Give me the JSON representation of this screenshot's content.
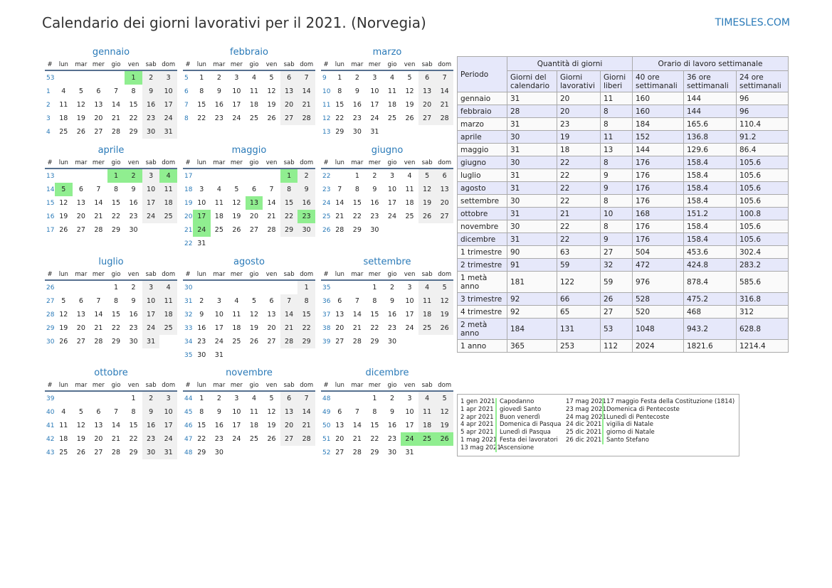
{
  "title": "Calendario dei giorni lavorativi per il 2021. (Norvegia)",
  "brand": "TIMESLES.COM",
  "calendar": {
    "year": 2021,
    "headers": [
      "#",
      "lun",
      "mar",
      "mer",
      "gio",
      "ven",
      "sab",
      "dom"
    ],
    "months": [
      {
        "name": "gennaio",
        "holidays": [
          1
        ]
      },
      {
        "name": "febbraio",
        "holidays": []
      },
      {
        "name": "marzo",
        "holidays": []
      },
      {
        "name": "aprile",
        "holidays": [
          1,
          2,
          4,
          5
        ]
      },
      {
        "name": "maggio",
        "holidays": [
          1,
          13,
          17,
          23,
          24
        ]
      },
      {
        "name": "giugno",
        "holidays": []
      },
      {
        "name": "luglio",
        "holidays": []
      },
      {
        "name": "agosto",
        "holidays": []
      },
      {
        "name": "settembre",
        "holidays": []
      },
      {
        "name": "ottobre",
        "holidays": []
      },
      {
        "name": "novembre",
        "holidays": []
      },
      {
        "name": "dicembre",
        "holidays": [
          24,
          25,
          26
        ]
      }
    ]
  },
  "summary": {
    "header": {
      "period": "Periodo",
      "days_group": "Quantità di giorni",
      "hours_group": "Orario di lavoro settimanale",
      "cols": [
        "Giorni del calendario",
        "Giorni lavorativi",
        "Giorni liberi",
        "40 ore settimanali",
        "36 ore settimanali",
        "24 ore settimanali"
      ]
    },
    "rows": [
      [
        "gennaio",
        "31",
        "20",
        "11",
        "160",
        "144",
        "96"
      ],
      [
        "febbraio",
        "28",
        "20",
        "8",
        "160",
        "144",
        "96"
      ],
      [
        "marzo",
        "31",
        "23",
        "8",
        "184",
        "165.6",
        "110.4"
      ],
      [
        "aprile",
        "30",
        "19",
        "11",
        "152",
        "136.8",
        "91.2"
      ],
      [
        "maggio",
        "31",
        "18",
        "13",
        "144",
        "129.6",
        "86.4"
      ],
      [
        "giugno",
        "30",
        "22",
        "8",
        "176",
        "158.4",
        "105.6"
      ],
      [
        "luglio",
        "31",
        "22",
        "9",
        "176",
        "158.4",
        "105.6"
      ],
      [
        "agosto",
        "31",
        "22",
        "9",
        "176",
        "158.4",
        "105.6"
      ],
      [
        "settembre",
        "30",
        "22",
        "8",
        "176",
        "158.4",
        "105.6"
      ],
      [
        "ottobre",
        "31",
        "21",
        "10",
        "168",
        "151.2",
        "100.8"
      ],
      [
        "novembre",
        "30",
        "22",
        "8",
        "176",
        "158.4",
        "105.6"
      ],
      [
        "dicembre",
        "31",
        "22",
        "9",
        "176",
        "158.4",
        "105.6"
      ],
      [
        "1 trimestre",
        "90",
        "63",
        "27",
        "504",
        "453.6",
        "302.4"
      ],
      [
        "2 trimestre",
        "91",
        "59",
        "32",
        "472",
        "424.8",
        "283.2"
      ],
      [
        "1 metà anno",
        "181",
        "122",
        "59",
        "976",
        "878.4",
        "585.6"
      ],
      [
        "3 trimestre",
        "92",
        "66",
        "26",
        "528",
        "475.2",
        "316.8"
      ],
      [
        "4 trimestre",
        "92",
        "65",
        "27",
        "520",
        "468",
        "312"
      ],
      [
        "2 metà anno",
        "184",
        "131",
        "53",
        "1048",
        "943.2",
        "628.8"
      ],
      [
        "1 anno",
        "365",
        "253",
        "112",
        "2024",
        "1821.6",
        "1214.4"
      ]
    ]
  },
  "holidays": [
    {
      "date": "1 gen 2021",
      "name": "Capodanno"
    },
    {
      "date": "1 apr 2021",
      "name": "giovedì Santo"
    },
    {
      "date": "2 apr 2021",
      "name": "Buon venerdì"
    },
    {
      "date": "4 apr 2021",
      "name": "Domenica di Pasqua"
    },
    {
      "date": "5 apr 2021",
      "name": "Lunedì di Pasqua"
    },
    {
      "date": "1 mag 2021",
      "name": "Festa dei lavoratori"
    },
    {
      "date": "13 mag 2021",
      "name": "Ascensione"
    },
    {
      "date": "17 mag 2021",
      "name": "17 maggio Festa della Costituzione (1814)"
    },
    {
      "date": "23 mag 2021",
      "name": "Domenica di Pentecoste"
    },
    {
      "date": "24 mag 2021",
      "name": "Lunedì di Pentecoste"
    },
    {
      "date": "24 dic 2021",
      "name": "vigilia di Natale"
    },
    {
      "date": "25 dic 2021",
      "name": "giorno di Natale"
    },
    {
      "date": "26 dic 2021",
      "name": "Santo Stefano"
    }
  ]
}
